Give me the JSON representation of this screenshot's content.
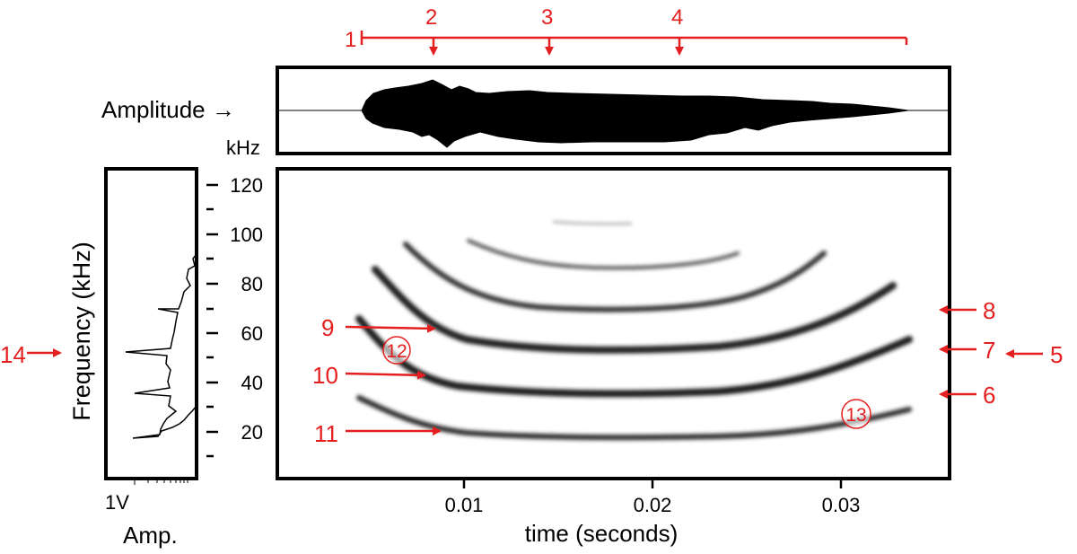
{
  "amplitude_label": "Amplitude →",
  "khz_unit": "kHz",
  "frequency_axis_label": "Frequency (kHz)",
  "time_axis_label": "time (seconds)",
  "amp_scale_label": "1V",
  "amp_axis_label": "Amp.",
  "freq_ticks": [
    "20",
    "40",
    "60",
    "80",
    "100",
    "120"
  ],
  "time_ticks": [
    "0.01",
    "0.02",
    "0.03"
  ],
  "callouts": {
    "n1": "1",
    "n2": "2",
    "n3": "3",
    "n4": "4",
    "n5": "5",
    "n6": "6",
    "n7": "7",
    "n8": "8",
    "n9": "9",
    "n10": "10",
    "n11": "11",
    "n12": "12",
    "n13": "13",
    "n14": "14"
  },
  "colors": {
    "annotation": "#e41f1f",
    "ink": "#000000"
  }
}
